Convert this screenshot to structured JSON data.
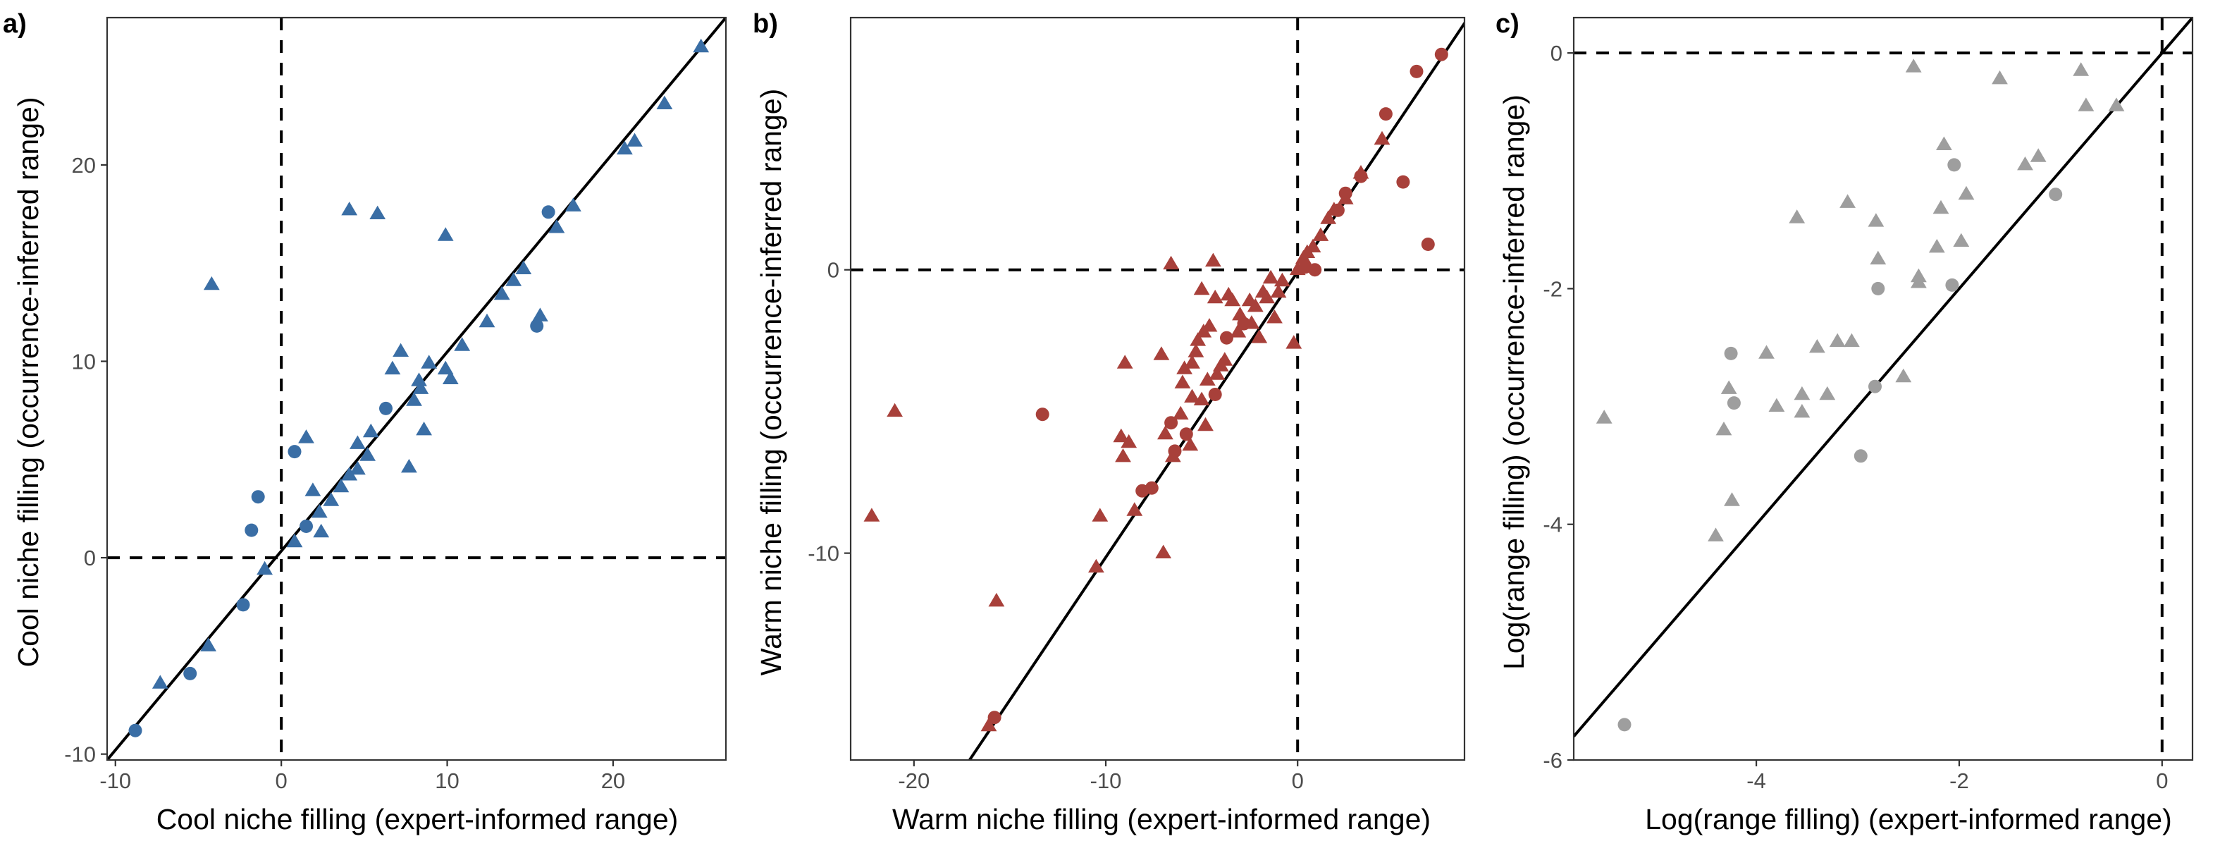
{
  "chart_data": [
    {
      "type": "scatter",
      "panel_label": "a)",
      "xlabel": "Cool niche filling (expert-informed range)",
      "ylabel": "Cool niche filling (occurrence-inferred range)",
      "xlim": [
        -10.5,
        26.8
      ],
      "ylim": [
        -10.3,
        27.5
      ],
      "xticks": [
        -10,
        0,
        10,
        20
      ],
      "yticks": [
        -10,
        0,
        10,
        20
      ],
      "xtick_labels": [
        "-10",
        "0",
        "10",
        "20"
      ],
      "ytick_labels": [
        "-10",
        "0",
        "10",
        "20"
      ],
      "reference_lines": {
        "x": 0,
        "y": 0,
        "style": "dashed"
      },
      "fit_line": {
        "x": [
          -10.5,
          26.8
        ],
        "y": [
          -10.3,
          27.5
        ]
      },
      "grid": false,
      "color": "#3a6ea5",
      "series": [
        {
          "marker": "triangle",
          "points": [
            [
              -4.2,
              13.9
            ],
            [
              4.1,
              17.7
            ],
            [
              5.8,
              17.5
            ],
            [
              9.9,
              16.4
            ],
            [
              -7.3,
              -6.4
            ],
            [
              -4.4,
              -4.5
            ],
            [
              -1.0,
              -0.6
            ],
            [
              0.8,
              0.8
            ],
            [
              1.5,
              6.1
            ],
            [
              1.9,
              3.4
            ],
            [
              2.3,
              2.3
            ],
            [
              2.4,
              1.3
            ],
            [
              3.0,
              2.9
            ],
            [
              3.6,
              3.6
            ],
            [
              4.1,
              4.2
            ],
            [
              4.6,
              4.5
            ],
            [
              4.6,
              5.8
            ],
            [
              5.2,
              5.2
            ],
            [
              5.4,
              6.4
            ],
            [
              6.7,
              9.6
            ],
            [
              7.2,
              10.5
            ],
            [
              7.7,
              4.6
            ],
            [
              8.0,
              8.0
            ],
            [
              8.3,
              9.0
            ],
            [
              8.4,
              8.6
            ],
            [
              8.6,
              6.5
            ],
            [
              8.9,
              9.9
            ],
            [
              9.9,
              9.6
            ],
            [
              10.2,
              9.1
            ],
            [
              10.9,
              10.8
            ],
            [
              12.4,
              12.0
            ],
            [
              13.3,
              13.4
            ],
            [
              14.0,
              14.1
            ],
            [
              14.6,
              14.7
            ],
            [
              15.6,
              12.3
            ],
            [
              16.6,
              16.8
            ],
            [
              17.6,
              17.9
            ],
            [
              20.7,
              20.8
            ],
            [
              21.3,
              21.2
            ],
            [
              23.1,
              23.1
            ],
            [
              25.3,
              26.0
            ]
          ]
        },
        {
          "marker": "circle",
          "points": [
            [
              -8.8,
              -8.8
            ],
            [
              -5.5,
              -5.9
            ],
            [
              -2.3,
              -2.4
            ],
            [
              -1.8,
              1.4
            ],
            [
              -1.4,
              3.1
            ],
            [
              0.8,
              5.4
            ],
            [
              1.5,
              1.6
            ],
            [
              6.3,
              7.6
            ],
            [
              15.4,
              11.8
            ],
            [
              16.1,
              17.6
            ]
          ]
        }
      ]
    },
    {
      "type": "scatter",
      "panel_label": "b)",
      "xlabel": "Warm niche filling (expert-informed range)",
      "ylabel": "Warm niche filling (occurrence-inferred range)",
      "xlim": [
        -23.3,
        8.7
      ],
      "ylim": [
        -17.3,
        8.9
      ],
      "xticks": [
        -20,
        -10,
        0
      ],
      "yticks": [
        -10,
        0
      ],
      "xtick_labels": [
        "-20",
        "-10",
        "0"
      ],
      "ytick_labels": [
        "-10",
        "0"
      ],
      "reference_lines": {
        "x": 0,
        "y": 0,
        "style": "dashed"
      },
      "fit_line": {
        "x": [
          -17.1,
          8.9
        ],
        "y": [
          -17.3,
          8.9
        ]
      },
      "grid": false,
      "color": "#a8403a",
      "series": [
        {
          "marker": "triangle",
          "points": [
            [
              -22.2,
              -8.7
            ],
            [
              -21.0,
              -5.0
            ],
            [
              -16.1,
              -16.1
            ],
            [
              -15.7,
              -11.7
            ],
            [
              -10.5,
              -10.5
            ],
            [
              -10.3,
              -8.7
            ],
            [
              -9.2,
              -5.9
            ],
            [
              -9.1,
              -6.6
            ],
            [
              -9.0,
              -3.3
            ],
            [
              -8.8,
              -6.1
            ],
            [
              -8.5,
              -8.5
            ],
            [
              -7.1,
              -3.0
            ],
            [
              -7.0,
              -10.0
            ],
            [
              -6.9,
              -5.8
            ],
            [
              -6.6,
              0.2
            ],
            [
              -6.5,
              -6.6
            ],
            [
              -6.1,
              -5.1
            ],
            [
              -6.0,
              -4.0
            ],
            [
              -5.9,
              -3.5
            ],
            [
              -5.6,
              -6.2
            ],
            [
              -5.5,
              -4.5
            ],
            [
              -5.5,
              -3.3
            ],
            [
              -5.3,
              -2.9
            ],
            [
              -5.2,
              -2.5
            ],
            [
              -5.0,
              -4.6
            ],
            [
              -5.0,
              -0.7
            ],
            [
              -4.9,
              -2.2
            ],
            [
              -4.8,
              -5.5
            ],
            [
              -4.7,
              -3.9
            ],
            [
              -4.6,
              -2.0
            ],
            [
              -4.4,
              0.3
            ],
            [
              -4.3,
              -1.0
            ],
            [
              -4.2,
              -3.7
            ],
            [
              -4.0,
              -3.4
            ],
            [
              -3.8,
              -3.2
            ],
            [
              -3.6,
              -0.9
            ],
            [
              -3.4,
              -1.1
            ],
            [
              -3.1,
              -2.2
            ],
            [
              -3.0,
              -1.6
            ],
            [
              -2.5,
              -1.1
            ],
            [
              -2.4,
              -1.9
            ],
            [
              -2.2,
              -1.3
            ],
            [
              -2.0,
              -2.4
            ],
            [
              -1.8,
              -0.8
            ],
            [
              -1.6,
              -1.0
            ],
            [
              -1.4,
              -0.3
            ],
            [
              -1.2,
              -1.7
            ],
            [
              -1.0,
              -0.8
            ],
            [
              -0.8,
              -0.4
            ],
            [
              -0.2,
              -2.6
            ],
            [
              0.0,
              0.0
            ],
            [
              0.3,
              0.4
            ],
            [
              0.5,
              0.6
            ],
            [
              0.8,
              0.8
            ],
            [
              1.2,
              1.2
            ],
            [
              1.6,
              1.8
            ],
            [
              1.9,
              2.1
            ],
            [
              2.5,
              2.5
            ],
            [
              3.3,
              3.4
            ],
            [
              4.4,
              4.6
            ]
          ]
        },
        {
          "marker": "circle",
          "points": [
            [
              -15.8,
              -15.8
            ],
            [
              -13.3,
              -5.1
            ],
            [
              -8.1,
              -7.8
            ],
            [
              -7.6,
              -7.7
            ],
            [
              -6.6,
              -5.4
            ],
            [
              -6.4,
              -6.4
            ],
            [
              -5.8,
              -5.8
            ],
            [
              -4.3,
              -4.4
            ],
            [
              -3.7,
              -2.4
            ],
            [
              -2.8,
              -1.9
            ],
            [
              0.4,
              0.1
            ],
            [
              0.9,
              0.0
            ],
            [
              2.1,
              2.1
            ],
            [
              2.5,
              2.7
            ],
            [
              3.3,
              3.3
            ],
            [
              4.6,
              5.5
            ],
            [
              5.5,
              3.1
            ],
            [
              6.2,
              7.0
            ],
            [
              6.8,
              0.9
            ],
            [
              7.5,
              7.6
            ]
          ]
        }
      ]
    },
    {
      "type": "scatter",
      "panel_label": "c)",
      "xlabel": "Log(range filling) (expert-informed range)",
      "ylabel": "Log(range filling) (occurrence-inferred range)",
      "xlim": [
        -5.8,
        0.3
      ],
      "ylim": [
        -6.0,
        0.3
      ],
      "xticks": [
        -4,
        -2,
        0
      ],
      "yticks": [
        -6,
        -4,
        -2,
        0
      ],
      "xtick_labels": [
        "-4",
        "-2",
        "0"
      ],
      "ytick_labels": [
        "-6",
        "-4",
        "-2",
        "0"
      ],
      "reference_lines": {
        "x": 0,
        "y": 0,
        "style": "dashed"
      },
      "fit_line": {
        "x": [
          -5.8,
          0.3
        ],
        "y": [
          -5.8,
          0.3
        ]
      },
      "grid": false,
      "color": "#9e9e9e",
      "series": [
        {
          "marker": "triangle",
          "points": [
            [
              -5.5,
              -3.1
            ],
            [
              -4.4,
              -4.1
            ],
            [
              -4.32,
              -3.2
            ],
            [
              -4.27,
              -2.85
            ],
            [
              -4.24,
              -3.8
            ],
            [
              -3.9,
              -2.55
            ],
            [
              -3.8,
              -3.0
            ],
            [
              -3.6,
              -1.4
            ],
            [
              -3.55,
              -3.05
            ],
            [
              -3.55,
              -2.9
            ],
            [
              -3.4,
              -2.5
            ],
            [
              -3.3,
              -2.9
            ],
            [
              -3.2,
              -2.45
            ],
            [
              -3.1,
              -1.27
            ],
            [
              -3.06,
              -2.45
            ],
            [
              -2.82,
              -1.43
            ],
            [
              -2.8,
              -1.75
            ],
            [
              -2.55,
              -2.75
            ],
            [
              -2.45,
              -0.12
            ],
            [
              -2.4,
              -1.9
            ],
            [
              -2.4,
              -1.95
            ],
            [
              -2.22,
              -1.65
            ],
            [
              -2.18,
              -1.32
            ],
            [
              -2.15,
              -0.78
            ],
            [
              -1.98,
              -1.6
            ],
            [
              -1.93,
              -1.2
            ],
            [
              -1.6,
              -0.22
            ],
            [
              -1.35,
              -0.95
            ],
            [
              -1.22,
              -0.88
            ],
            [
              -0.8,
              -0.15
            ],
            [
              -0.75,
              -0.45
            ],
            [
              -0.45,
              -0.45
            ]
          ]
        },
        {
          "marker": "circle",
          "points": [
            [
              -5.3,
              -5.7
            ],
            [
              -4.25,
              -2.55
            ],
            [
              -4.22,
              -2.97
            ],
            [
              -2.97,
              -3.42
            ],
            [
              -2.83,
              -2.83
            ],
            [
              -2.8,
              -2.0
            ],
            [
              -2.05,
              -0.95
            ],
            [
              -2.07,
              -1.97
            ],
            [
              -1.05,
              -1.2
            ]
          ]
        }
      ]
    }
  ]
}
